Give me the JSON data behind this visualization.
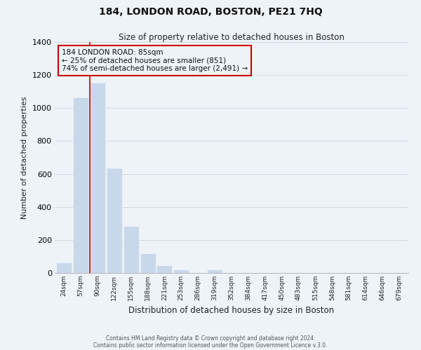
{
  "title": "184, LONDON ROAD, BOSTON, PE21 7HQ",
  "subtitle": "Size of property relative to detached houses in Boston",
  "xlabel": "Distribution of detached houses by size in Boston",
  "ylabel": "Number of detached properties",
  "bar_labels": [
    "24sqm",
    "57sqm",
    "90sqm",
    "122sqm",
    "155sqm",
    "188sqm",
    "221sqm",
    "253sqm",
    "286sqm",
    "319sqm",
    "352sqm",
    "384sqm",
    "417sqm",
    "450sqm",
    "483sqm",
    "515sqm",
    "548sqm",
    "581sqm",
    "614sqm",
    "646sqm",
    "679sqm"
  ],
  "bar_values": [
    65,
    1065,
    1155,
    635,
    285,
    120,
    47,
    22,
    0,
    22,
    0,
    0,
    0,
    0,
    0,
    0,
    0,
    0,
    0,
    0,
    0
  ],
  "bar_color": "#c8d8ea",
  "vline_color": "#cc0000",
  "vline_index": 2,
  "ylim": [
    0,
    1400
  ],
  "yticks": [
    0,
    200,
    400,
    600,
    800,
    1000,
    1200,
    1400
  ],
  "annotation_line1": "184 LONDON ROAD: 85sqm",
  "annotation_line2": "← 25% of detached houses are smaller (851)",
  "annotation_line3": "74% of semi-detached houses are larger (2,491) →",
  "footer1": "Contains HM Land Registry data © Crown copyright and database right 2024.",
  "footer2": "Contains public sector information licensed under the Open Government Licence v.3.0.",
  "grid_color": "#cdd8e3",
  "bg_color": "#eef3f8",
  "box_edge_color": "#cc0000",
  "title_fontsize": 10,
  "subtitle_fontsize": 8.5,
  "ylabel_fontsize": 8,
  "xlabel_fontsize": 8.5,
  "ytick_fontsize": 8,
  "xtick_fontsize": 6.5
}
